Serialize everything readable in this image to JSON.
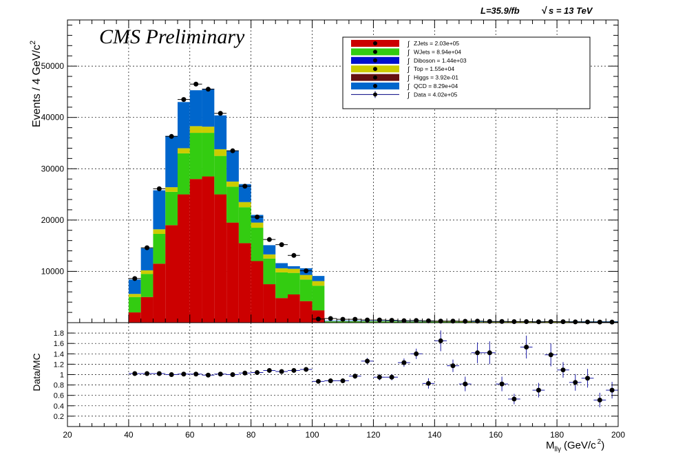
{
  "header": {
    "lumi": "L=35.9/fb",
    "energy": "s = 13 TeV",
    "sqrt_symbol": "√",
    "preliminary": "CMS Preliminary"
  },
  "legend": {
    "integral_symbol": "∫",
    "entries": [
      {
        "key": "zjets",
        "label": "ZJets = 2.03e+05",
        "color": "#cc0000"
      },
      {
        "key": "wjets",
        "label": "WJets = 8.94e+04",
        "color": "#33cc11"
      },
      {
        "key": "diboson",
        "label": "Diboson = 1.44e+03",
        "color": "#0011cc"
      },
      {
        "key": "top",
        "label": "Top = 1.55e+04",
        "color": "#cccc00"
      },
      {
        "key": "higgs",
        "label": "Higgs = 3.92e-01",
        "color": "#661111"
      },
      {
        "key": "qcd",
        "label": "QCD = 8.29e+04",
        "color": "#0066cc"
      },
      {
        "key": "data",
        "label": "Data = 4.02e+05",
        "color": "#000080"
      }
    ]
  },
  "chart_data": [
    {
      "type": "bar",
      "subtype": "stacked-histogram",
      "ylabel_main": "Events / 4 GeV/c",
      "ylabel_exp": "2",
      "xlim": [
        20,
        200
      ],
      "ylim": [
        0,
        59000
      ],
      "bin_width": 4,
      "x_bin_starts": [
        40,
        44,
        48,
        52,
        56,
        60,
        64,
        68,
        72,
        76,
        80,
        84,
        88,
        92,
        96,
        100,
        104,
        108,
        112,
        116,
        120,
        124,
        128,
        132,
        136,
        140,
        144,
        148,
        152,
        156,
        160,
        164,
        168,
        172,
        176,
        180,
        184,
        188,
        192,
        196
      ],
      "stack_order": [
        "zjets",
        "wjets",
        "top",
        "qcd"
      ],
      "series": [
        {
          "name": "ZJets",
          "key": "zjets",
          "values": [
            2000,
            5000,
            11500,
            19000,
            25000,
            28000,
            28500,
            25000,
            19500,
            15500,
            12000,
            7500,
            4800,
            5500,
            4200,
            2400,
            0,
            0,
            0,
            0,
            0,
            0,
            0,
            0,
            0,
            0,
            0,
            0,
            0,
            0,
            0,
            0,
            0,
            0,
            0,
            0,
            0,
            0,
            0,
            0
          ]
        },
        {
          "name": "WJets",
          "key": "wjets",
          "values": [
            3000,
            4500,
            5800,
            6500,
            8000,
            9000,
            8500,
            7500,
            7000,
            7000,
            6500,
            5000,
            5000,
            4200,
            4200,
            4800,
            200,
            200,
            200,
            200,
            200,
            200,
            150,
            150,
            150,
            150,
            150,
            150,
            100,
            100,
            100,
            100,
            100,
            100,
            100,
            100,
            100,
            100,
            100,
            100
          ]
        },
        {
          "name": "Top",
          "key": "top",
          "values": [
            600,
            700,
            900,
            900,
            1000,
            1300,
            1200,
            1300,
            1000,
            1000,
            1000,
            800,
            800,
            800,
            900,
            900,
            50,
            50,
            50,
            50,
            50,
            50,
            50,
            50,
            50,
            50,
            50,
            50,
            50,
            50,
            50,
            50,
            50,
            50,
            50,
            50,
            50,
            50,
            50,
            50
          ]
        },
        {
          "name": "QCD",
          "key": "qcd",
          "values": [
            2800,
            4300,
            7600,
            10000,
            9000,
            7000,
            7400,
            6600,
            6000,
            3500,
            1500,
            1800,
            1000,
            500,
            1300,
            1000,
            120,
            120,
            120,
            100,
            100,
            100,
            100,
            100,
            100,
            100,
            100,
            100,
            100,
            100,
            100,
            100,
            100,
            100,
            100,
            100,
            100,
            100,
            100,
            100
          ]
        }
      ],
      "data_points": {
        "name": "Data",
        "values": [
          8600,
          14600,
          26100,
          36300,
          43500,
          46500,
          45500,
          40800,
          33500,
          26600,
          20600,
          16200,
          15200,
          13100,
          10100,
          700,
          800,
          650,
          650,
          520,
          520,
          460,
          380,
          420,
          360,
          300,
          300,
          270,
          300,
          240,
          230,
          200,
          200,
          170,
          200,
          180,
          150,
          140,
          120,
          110
        ]
      },
      "xticks": [
        "20",
        "40",
        "60",
        "80",
        "100",
        "120",
        "140",
        "160",
        "180",
        "200"
      ],
      "yticks": [
        "10000",
        "20000",
        "30000",
        "40000",
        "50000"
      ],
      "ytick_values": [
        10000,
        20000,
        30000,
        40000,
        50000
      ],
      "grid": true
    },
    {
      "type": "scatter",
      "subtype": "ratio",
      "ylabel": "Data/MC",
      "xlabel_main": "M",
      "xlabel_sub": "llγ",
      "xlabel_unit": "(GeV/c",
      "xlabel_exp": "2",
      "xlabel_close": ")",
      "xlim": [
        20,
        200
      ],
      "ylim": [
        0,
        2
      ],
      "x": [
        42,
        46,
        50,
        54,
        58,
        62,
        66,
        70,
        74,
        78,
        82,
        86,
        90,
        94,
        98,
        102,
        106,
        110,
        114,
        118,
        122,
        126,
        130,
        134,
        138,
        142,
        146,
        150,
        154,
        158,
        162,
        166,
        170,
        174,
        178,
        182,
        186,
        190,
        194,
        198
      ],
      "values": [
        1.02,
        1.02,
        1.02,
        1.0,
        1.01,
        1.01,
        0.99,
        1.01,
        1.0,
        1.03,
        1.04,
        1.08,
        1.06,
        1.08,
        1.1,
        0.87,
        0.88,
        0.88,
        0.97,
        1.26,
        0.95,
        0.95,
        1.23,
        1.4,
        0.83,
        1.65,
        1.17,
        0.82,
        1.42,
        1.42,
        0.82,
        0.53,
        1.53,
        0.7,
        1.38,
        1.09,
        0.85,
        0.93,
        0.51,
        0.7
      ],
      "errors": [
        0.01,
        0.01,
        0.01,
        0.01,
        0.01,
        0.01,
        0.01,
        0.01,
        0.01,
        0.01,
        0.01,
        0.01,
        0.01,
        0.01,
        0.01,
        0.04,
        0.04,
        0.04,
        0.05,
        0.06,
        0.06,
        0.06,
        0.08,
        0.1,
        0.1,
        0.2,
        0.12,
        0.14,
        0.2,
        0.22,
        0.14,
        0.1,
        0.22,
        0.14,
        0.22,
        0.15,
        0.16,
        0.18,
        0.14,
        0.16
      ],
      "xticks": [
        "20",
        "40",
        "60",
        "80",
        "100",
        "120",
        "140",
        "160",
        "180",
        "200"
      ],
      "yticks": [
        "0.2",
        "0.4",
        "0.6",
        "0.8",
        "1",
        "1.2",
        "1.4",
        "1.6",
        "1.8"
      ],
      "ytick_values": [
        0.2,
        0.4,
        0.6,
        0.8,
        1.0,
        1.2,
        1.4,
        1.6,
        1.8
      ],
      "grid": true
    }
  ]
}
